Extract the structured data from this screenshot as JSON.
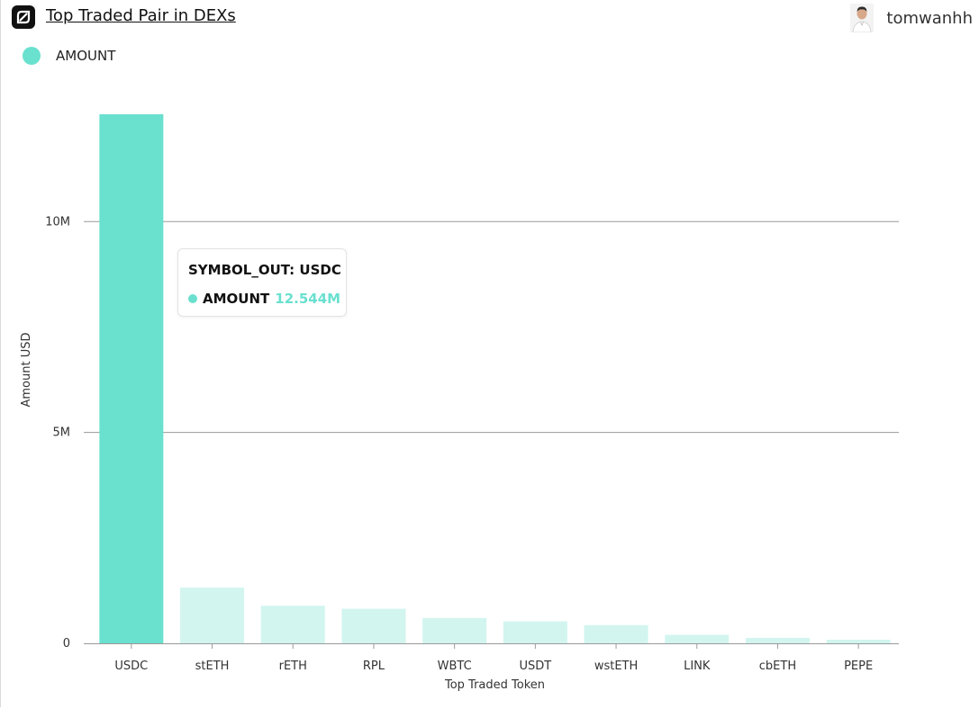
{
  "header": {
    "title": "Top Traded Pair in DEXs",
    "username": "tomwanhh"
  },
  "legend": {
    "label": "AMOUNT",
    "color": "#6ae0cf"
  },
  "tooltip": {
    "title": "SYMBOL_OUT: USDC",
    "label": "AMOUNT",
    "value": "12.544M"
  },
  "colors": {
    "accent": "#6ae0cf",
    "bar_faded": "#d2f5ef",
    "grid": "#9a9a9a"
  },
  "chart_data": {
    "type": "bar",
    "categories": [
      "USDC",
      "stETH",
      "rETH",
      "RPL",
      "WBTC",
      "USDT",
      "wstETH",
      "LINK",
      "cbETH",
      "PEPE"
    ],
    "series": [
      {
        "name": "AMOUNT",
        "values": [
          12544000,
          1320000,
          890000,
          820000,
          600000,
          520000,
          430000,
          200000,
          130000,
          85000
        ]
      }
    ],
    "highlighted": "USDC",
    "xlabel": "Top Traded Token",
    "ylabel": "Amount USD",
    "yticks": [
      0,
      5000000,
      10000000
    ],
    "ytick_labels": [
      "0",
      "5M",
      "10M"
    ],
    "ylim": [
      0,
      12544000
    ],
    "grid": true,
    "legend_position": "top-left"
  }
}
